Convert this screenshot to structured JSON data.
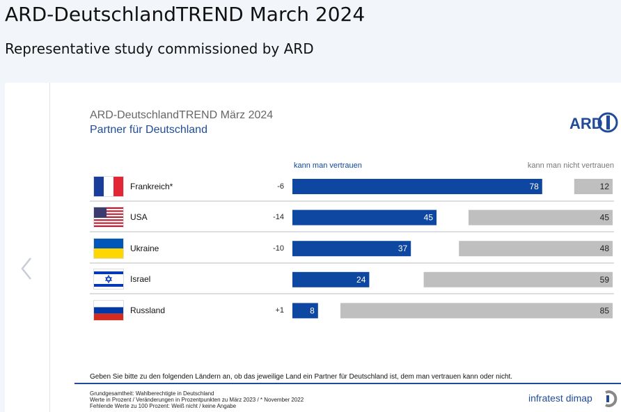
{
  "page": {
    "title": "ARD-DeutschlandTREND March 2024",
    "subtitle": "Representative study commissioned by ARD"
  },
  "chart_data": {
    "type": "bar",
    "title": "ARD-DeutschlandTREND März 2024",
    "subtitle": "Partner für Deutschland",
    "logo_text": "ARD",
    "categories": [
      "Frankreich*",
      "USA",
      "Ukraine",
      "Israel",
      "Russland"
    ],
    "flags": [
      "france-flag",
      "usa-flag",
      "ukraine-flag",
      "israel-flag",
      "russia-flag"
    ],
    "changes": [
      "-6",
      "-14",
      "-10",
      "",
      "+1"
    ],
    "series": [
      {
        "name": "kann man vertrauen",
        "values": [
          78,
          45,
          37,
          24,
          8
        ],
        "color": "#0d47a1"
      },
      {
        "name": "kann man nicht vertrauen",
        "values": [
          12,
          45,
          48,
          59,
          85
        ],
        "color": "#bfbfbf"
      }
    ],
    "ylim": [
      0,
      100
    ],
    "question": "Geben Sie bitte zu den folgenden Ländern an, ob das jeweilige Land ein Partner für Deutschland ist, dem man vertrauen kann oder nicht.",
    "footnotes": [
      "Grundgesamtheit: Wahlberechtigte in Deutschland",
      "Werte in Prozent / Veränderungen in Prozentpunkten zu März 2023 / * November 2022",
      "Fehlende Werte zu 100 Prozent: Weiß nicht / keine Angabe"
    ],
    "source": "infratest dimap"
  },
  "colors": {
    "trust": "#0d47a1",
    "distrust": "#bfbfbf",
    "accent": "#1f4b9a"
  }
}
